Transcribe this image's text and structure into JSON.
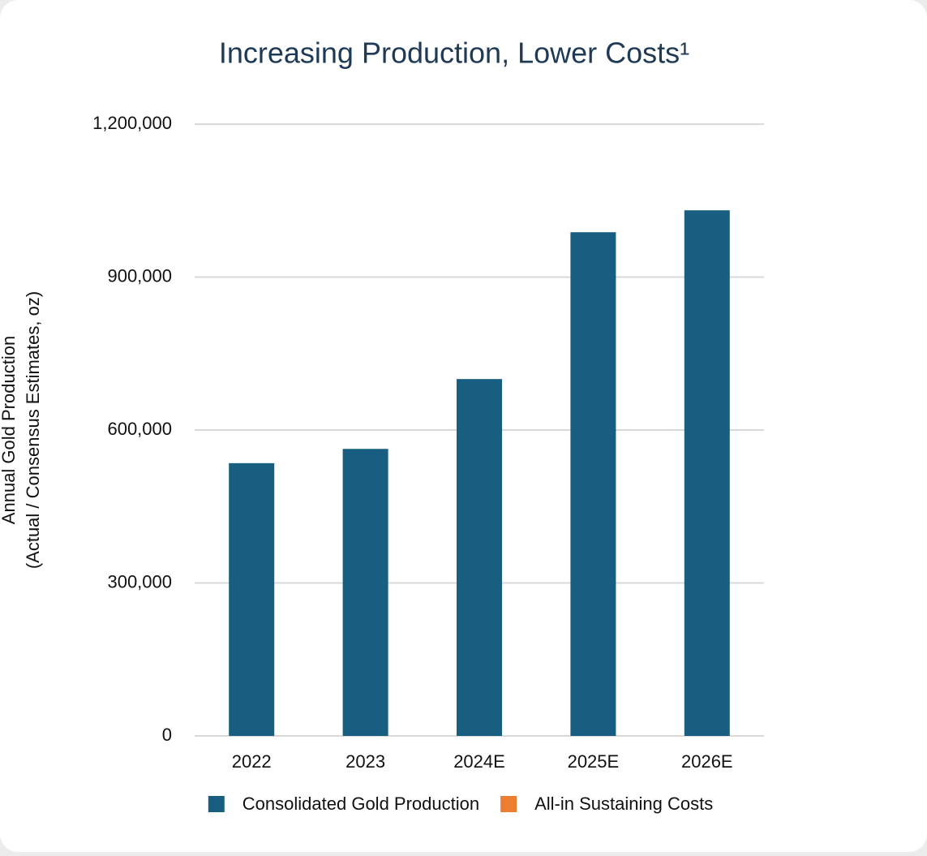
{
  "chart_data": {
    "type": "bar",
    "title": "Increasing Production, Lower Costs¹",
    "ylabel": [
      "Annual Gold Production",
      "(Actual / Consensus Estimates, oz)"
    ],
    "categories": [
      "2022",
      "2023",
      "2024E",
      "2025E",
      "2026E"
    ],
    "series": [
      {
        "name": "Consolidated Gold Production",
        "color": "#175e80",
        "values": [
          535000,
          563000,
          700000,
          988000,
          1031000
        ]
      },
      {
        "name": "All-in Sustaining Costs",
        "color": "#ed7d31",
        "values": [
          null,
          null,
          null,
          null,
          null
        ]
      }
    ],
    "ylim": [
      0,
      1200000
    ],
    "yticks": [
      0,
      {
        "value": 300000,
        "label": "300,000"
      },
      {
        "value": 600000,
        "label": "600,000"
      },
      {
        "value": 900000,
        "label": "900,000"
      },
      {
        "value": 1200000,
        "label": "1,200,000"
      }
    ],
    "grid": true,
    "legend": "bottom"
  }
}
